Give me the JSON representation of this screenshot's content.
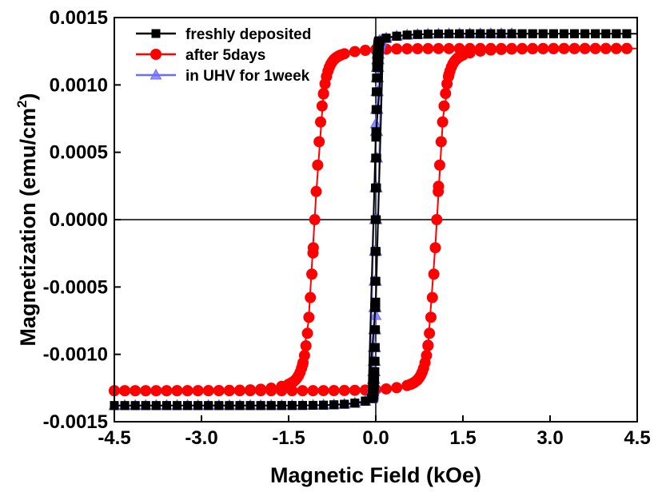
{
  "chart_data": {
    "type": "line",
    "xlabel": "Magnetic Field (kOe)",
    "ylabel": {
      "main": "Magnetization (emu/cm",
      "superscript": "2",
      "close": ")"
    },
    "xlim": [
      -4.5,
      4.5
    ],
    "ylim": [
      -0.0015,
      0.0015
    ],
    "x_ticks": [
      "-4.5",
      "-3.0",
      "-1.5",
      "0.0",
      "1.5",
      "3.0",
      "4.5"
    ],
    "y_ticks": [
      "0.0015",
      "0.0010",
      "0.0005",
      "0.0000",
      "-0.0005",
      "-0.0010",
      "-0.0015"
    ],
    "grid": false,
    "zero_lines": true,
    "legend_position": "top-left",
    "series": [
      {
        "name": "freshly deposited",
        "color": "#000000",
        "marker": "square",
        "loop": {
          "Ms": 0.00138,
          "Hc": 0.01,
          "width": 0.02,
          "approach": 6e-05,
          "approach_scale": 0.3,
          "xmax": 4.5,
          "xmin": -4.5
        }
      },
      {
        "name": "after 5days",
        "color": "#ff0000",
        "marker": "circle",
        "loop": {
          "Ms": 0.00127,
          "Hc": 1.05,
          "width": 0.14,
          "approach": 0.00016,
          "approach_scale": 0.35,
          "xmax": 4.5,
          "xmin": -4.5
        }
      },
      {
        "name": "in UHV for 1week",
        "color": "#6b6bff",
        "marker": "triangle",
        "loop": {
          "Ms": 0.00138,
          "Hc": 0.015,
          "width": 0.025,
          "approach": 6e-05,
          "approach_scale": 0.3,
          "xmax": 2.5,
          "xmin": -4.5
        }
      }
    ]
  }
}
